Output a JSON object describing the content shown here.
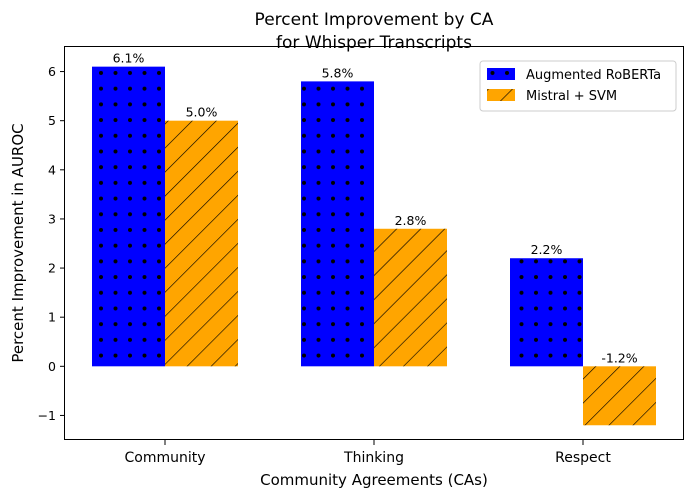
{
  "chart_data": {
    "type": "bar",
    "title": "Percent Improvement by CA",
    "subtitle": "for Whisper Transcripts",
    "xlabel": "Community Agreements (CAs)",
    "ylabel": "Percent Improvement in AUROC",
    "categories": [
      "Community",
      "Thinking",
      "Respect"
    ],
    "series": [
      {
        "name": "Augmented RoBERTa",
        "values": [
          6.1,
          5.8,
          2.2
        ],
        "labels": [
          "6.1%",
          "5.8%",
          "2.2%"
        ],
        "color": "#0000ff",
        "pattern": "dots"
      },
      {
        "name": "Mistral + SVM",
        "values": [
          5.0,
          2.8,
          -1.2
        ],
        "labels": [
          "5.0%",
          "2.8%",
          "-1.2%"
        ],
        "color": "#ffa500",
        "pattern": "diagonal-hatch"
      }
    ],
    "ylim": [
      -1.5,
      6.5
    ],
    "yticks": [
      -1,
      0,
      1,
      2,
      3,
      4,
      5,
      6
    ],
    "ytick_labels": [
      "−1",
      "0",
      "1",
      "2",
      "3",
      "4",
      "5",
      "6"
    ],
    "grid": false,
    "legend_position": "top-right"
  }
}
